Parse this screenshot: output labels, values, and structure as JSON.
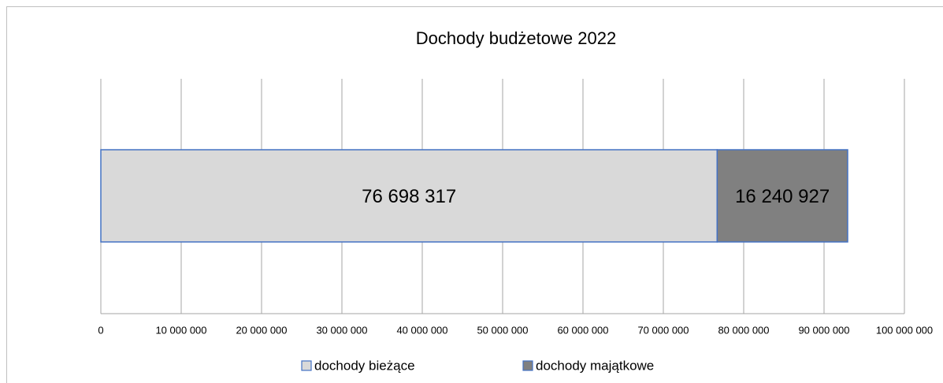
{
  "chart_data": {
    "type": "stacked_barh",
    "title": "Dochody budżetowe 2022",
    "series": [
      {
        "name": "dochody bieżące",
        "color": "#d9d9d9",
        "values": [
          76698317
        ],
        "value_labels": [
          "76 698 317"
        ]
      },
      {
        "name": "dochody majątkowe",
        "color": "#808080",
        "values": [
          16240927
        ],
        "value_labels": [
          "16 240 927"
        ]
      }
    ],
    "xlim": [
      0,
      100000000
    ],
    "xticks": [
      0,
      {
        "value": 10000000,
        "label": "10 000 000"
      },
      {
        "value": 20000000,
        "label": "20 000 000"
      },
      {
        "value": 30000000,
        "label": "30 000 000"
      },
      {
        "value": 40000000,
        "label": "40 000 000"
      },
      {
        "value": 50000000,
        "label": "50 000 000"
      },
      {
        "value": 60000000,
        "label": "60 000 000"
      },
      {
        "value": 70000000,
        "label": "70 000 000"
      },
      {
        "value": 80000000,
        "label": "80 000 000"
      },
      {
        "value": 90000000,
        "label": "90 000 000"
      },
      {
        "value": 100000000,
        "label": "100 000 000"
      }
    ],
    "grid": true,
    "legend": "bottom",
    "bar_edge_color": "#4472c4"
  }
}
